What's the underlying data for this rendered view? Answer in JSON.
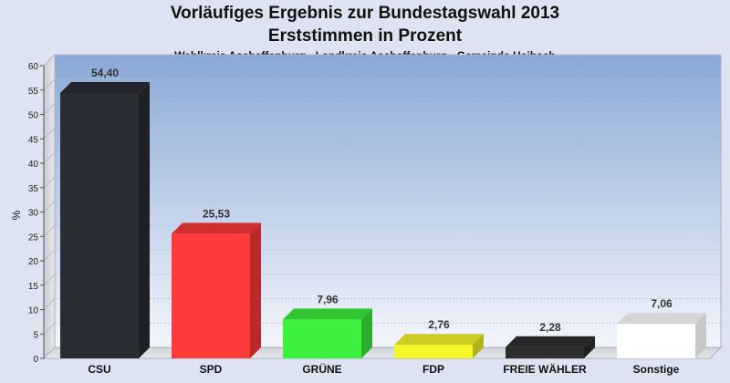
{
  "chart_data": {
    "type": "bar",
    "title": "Vorläufiges Ergebnis zur Bundestagswahl 2013",
    "title_line2": "Erststimmen in Prozent",
    "subtitle": "Wahlkreis Aschaffenburg - Landkreis Aschaffenburg - Gemeinde Haibach",
    "ylabel": "%",
    "xlabel": "",
    "ylim": [
      0,
      60
    ],
    "yticks": [
      "0",
      "5",
      "10",
      "15",
      "20",
      "25",
      "30",
      "35",
      "40",
      "45",
      "50",
      "55",
      "60"
    ],
    "grid": true,
    "categories": [
      "CSU",
      "SPD",
      "GRÜNE",
      "FDP",
      "FREIE WÄHLER",
      "Sonstige"
    ],
    "values": [
      54.4,
      25.53,
      7.96,
      2.76,
      2.28,
      7.06
    ],
    "value_labels": [
      "54,40",
      "25,53",
      "7,96",
      "2,76",
      "2,28",
      "7,06"
    ],
    "colors": [
      "#2b2d35",
      "#ff3a3a",
      "#3cf23c",
      "#f7f72a",
      "#2e2e2e",
      "#ffffff"
    ]
  }
}
